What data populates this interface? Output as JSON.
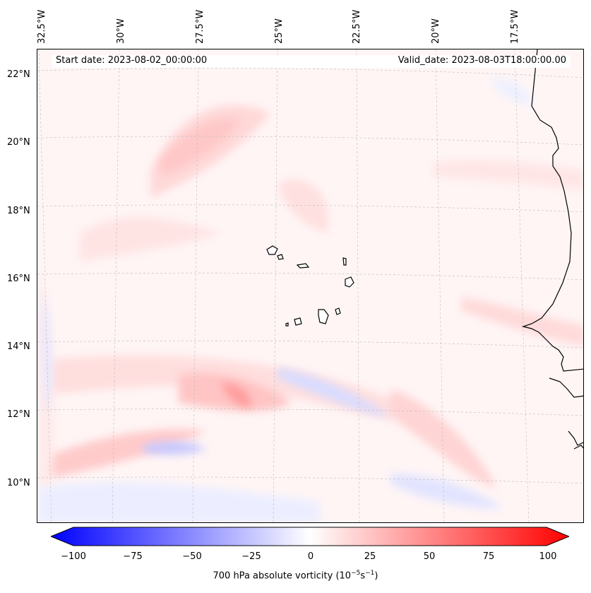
{
  "map": {
    "start_date": "Start date: 2023-08-02_00:00:00",
    "valid_date": "Valid_date: 2023-08-03T18:00:00.00",
    "lon_labels": [
      "32.5°W",
      "30°W",
      "27.5°W",
      "25°W",
      "22.5°W",
      "20°W",
      "17.5°W"
    ],
    "lat_labels": [
      "22°N",
      "20°N",
      "18°N",
      "16°N",
      "14°N",
      "12°N",
      "10°N"
    ]
  },
  "colorbar": {
    "ticks": [
      "−100",
      "−75",
      "−50",
      "−25",
      "0",
      "25",
      "50",
      "75",
      "100"
    ],
    "label_prefix": "700 hPa absolute vorticity (10",
    "label_exp1": "−5",
    "label_mid": "s",
    "label_exp2": "−1",
    "label_suffix": ")",
    "min": -100,
    "max": 100,
    "low_color": "#0000ff",
    "high_color": "#ff0000"
  }
}
